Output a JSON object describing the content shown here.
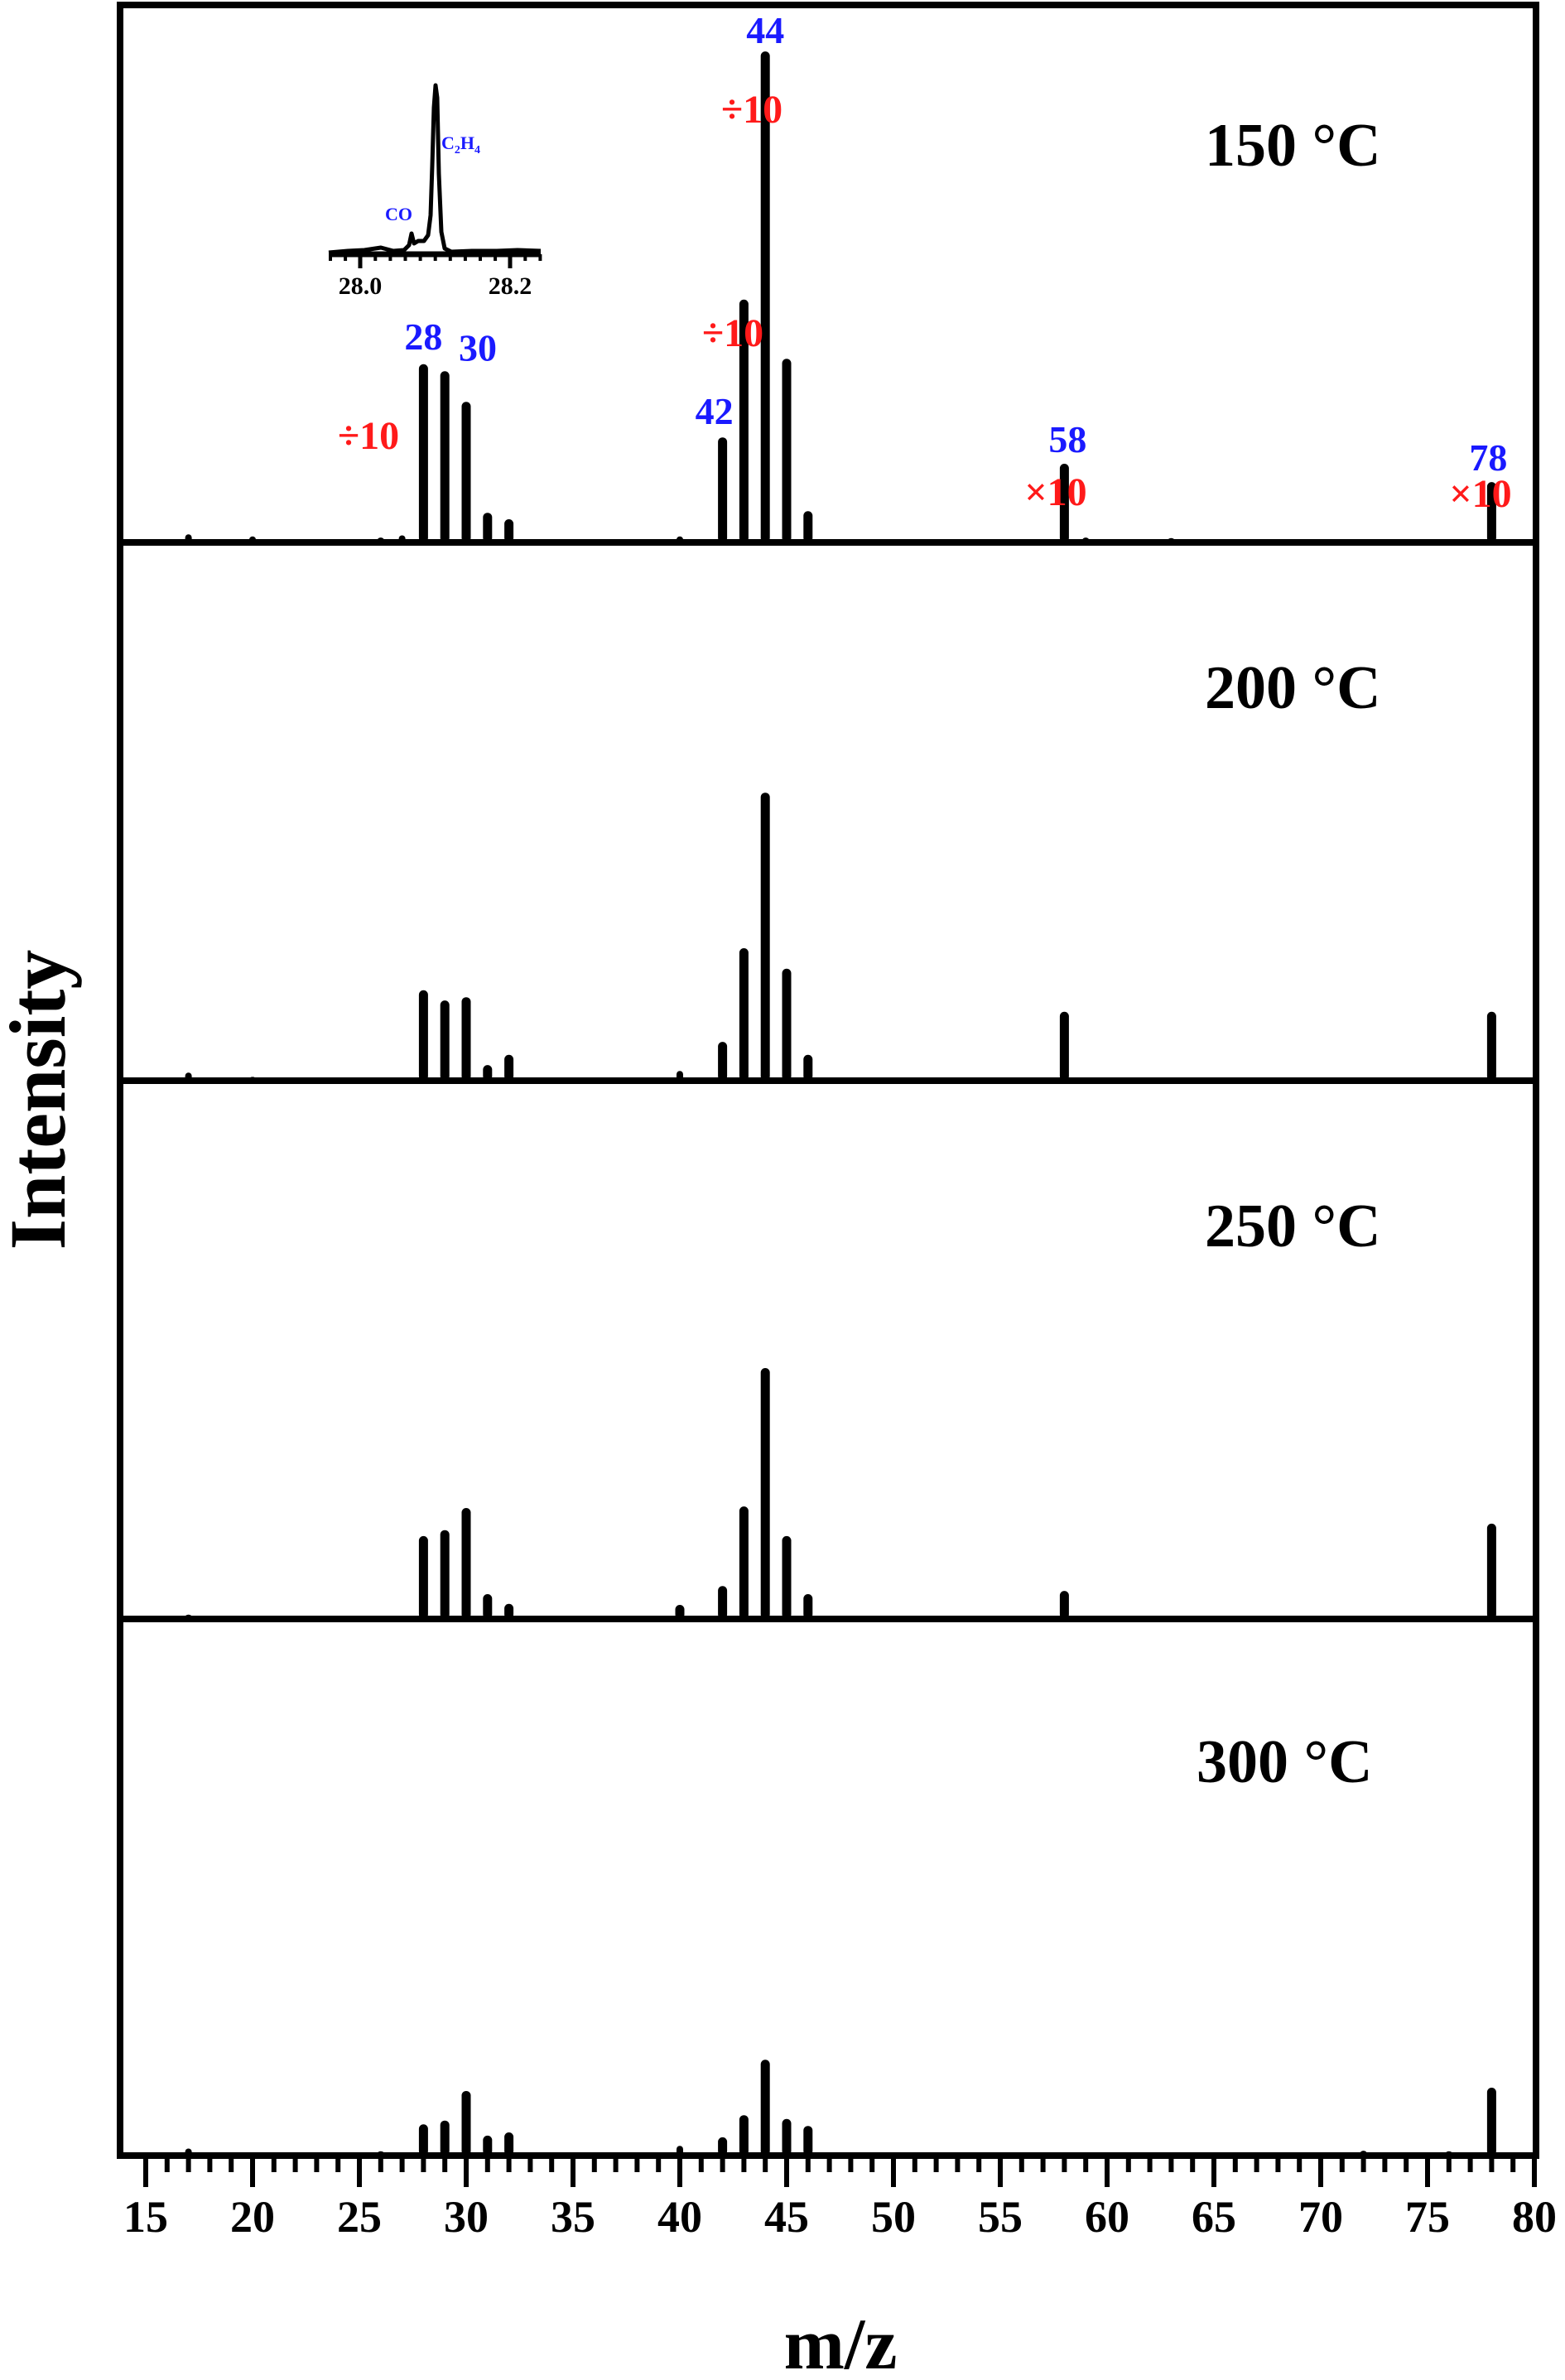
{
  "chart_data": {
    "type": "bar",
    "title": "",
    "xlabel": "m/z",
    "ylabel": "Intensity",
    "xlim": [
      15,
      80
    ],
    "x_ticks": [
      15,
      20,
      25,
      30,
      35,
      40,
      45,
      50,
      55,
      60,
      65,
      70,
      75,
      80
    ],
    "x_minor_step": 1,
    "y_units": "relative (% of panel height)",
    "grid": false,
    "legend": null,
    "panels": [
      {
        "label": "150 °C",
        "peaks": [
          {
            "mz": 17,
            "value": 1.2
          },
          {
            "mz": 20,
            "value": 0.8
          },
          {
            "mz": 26,
            "value": 0.6
          },
          {
            "mz": 27,
            "value": 1.0
          },
          {
            "mz": 28,
            "value": 32.8
          },
          {
            "mz": 29,
            "value": 31.5
          },
          {
            "mz": 30,
            "value": 25.8
          },
          {
            "mz": 31,
            "value": 5.2
          },
          {
            "mz": 32,
            "value": 4.0
          },
          {
            "mz": 40,
            "value": 0.8
          },
          {
            "mz": 42,
            "value": 19.2
          },
          {
            "mz": 43,
            "value": 44.8
          },
          {
            "mz": 44,
            "value": 90.9
          },
          {
            "mz": 45,
            "value": 33.8
          },
          {
            "mz": 46,
            "value": 5.5
          },
          {
            "mz": 58,
            "value": 14.3
          },
          {
            "mz": 59,
            "value": 0.6
          },
          {
            "mz": 63,
            "value": 0.5
          },
          {
            "mz": 78,
            "value": 10.9
          }
        ],
        "peak_labels": [
          {
            "mz": 28,
            "text": "28"
          },
          {
            "mz": 30,
            "text": "30"
          },
          {
            "mz": 42,
            "text": "42"
          },
          {
            "mz": 44,
            "text": "44"
          },
          {
            "mz": 58,
            "text": "58"
          },
          {
            "mz": 78,
            "text": "78"
          }
        ],
        "scale_annotations": [
          {
            "text": "÷10",
            "near_mz": 28
          },
          {
            "text": "÷10",
            "near_mz": 43
          },
          {
            "text": "÷10",
            "near_mz": 44
          },
          {
            "text": "×10",
            "near_mz": 58
          },
          {
            "text": "×10",
            "near_mz": 78
          }
        ],
        "inset": {
          "x_ticks": [
            "28.0",
            "28.2"
          ],
          "xlim": [
            27.95,
            28.25
          ],
          "labels": [
            {
              "text": "CO",
              "x": 28.05
            },
            {
              "text": "C2H4",
              "x": 28.1
            }
          ],
          "description": "High-resolution m/z 28 peak resolving CO and C2H4"
        }
      },
      {
        "label": "200 °C",
        "peaks": [
          {
            "mz": 17,
            "value": 1.2
          },
          {
            "mz": 20,
            "value": 0.4
          },
          {
            "mz": 28,
            "value": 16.5
          },
          {
            "mz": 29,
            "value": 14.6
          },
          {
            "mz": 30,
            "value": 15.2
          },
          {
            "mz": 31,
            "value": 2.6
          },
          {
            "mz": 32,
            "value": 4.5
          },
          {
            "mz": 40,
            "value": 1.5
          },
          {
            "mz": 42,
            "value": 6.9
          },
          {
            "mz": 43,
            "value": 24.3
          },
          {
            "mz": 44,
            "value": 53.2
          },
          {
            "mz": 45,
            "value": 20.5
          },
          {
            "mz": 46,
            "value": 4.5
          },
          {
            "mz": 58,
            "value": 12.5
          },
          {
            "mz": 78,
            "value": 12.5
          }
        ]
      },
      {
        "label": "250 °C",
        "peaks": [
          {
            "mz": 17,
            "value": 0.5
          },
          {
            "mz": 28,
            "value": 15.1
          },
          {
            "mz": 29,
            "value": 16.2
          },
          {
            "mz": 30,
            "value": 20.3
          },
          {
            "mz": 31,
            "value": 4.3
          },
          {
            "mz": 32,
            "value": 2.5
          },
          {
            "mz": 40,
            "value": 2.3
          },
          {
            "mz": 42,
            "value": 5.8
          },
          {
            "mz": 43,
            "value": 20.6
          },
          {
            "mz": 44,
            "value": 46.3
          },
          {
            "mz": 45,
            "value": 15.1
          },
          {
            "mz": 46,
            "value": 4.3
          },
          {
            "mz": 58,
            "value": 4.9
          },
          {
            "mz": 78,
            "value": 17.4
          }
        ]
      },
      {
        "label": "300 °C",
        "peaks": [
          {
            "mz": 17,
            "value": 1.0
          },
          {
            "mz": 26,
            "value": 0.5
          },
          {
            "mz": 28,
            "value": 5.5
          },
          {
            "mz": 29,
            "value": 6.2
          },
          {
            "mz": 30,
            "value": 11.7
          },
          {
            "mz": 31,
            "value": 3.4
          },
          {
            "mz": 32,
            "value": 4.0
          },
          {
            "mz": 40,
            "value": 1.5
          },
          {
            "mz": 42,
            "value": 3.1
          },
          {
            "mz": 43,
            "value": 7.2
          },
          {
            "mz": 44,
            "value": 17.5
          },
          {
            "mz": 45,
            "value": 6.5
          },
          {
            "mz": 46,
            "value": 5.2
          },
          {
            "mz": 72,
            "value": 0.6
          },
          {
            "mz": 76,
            "value": 0.5
          },
          {
            "mz": 78,
            "value": 12.3
          }
        ]
      }
    ]
  },
  "colors": {
    "peak_label": "#1a1aff",
    "scale_label": "#ff1a1a",
    "axis": "#000000"
  }
}
